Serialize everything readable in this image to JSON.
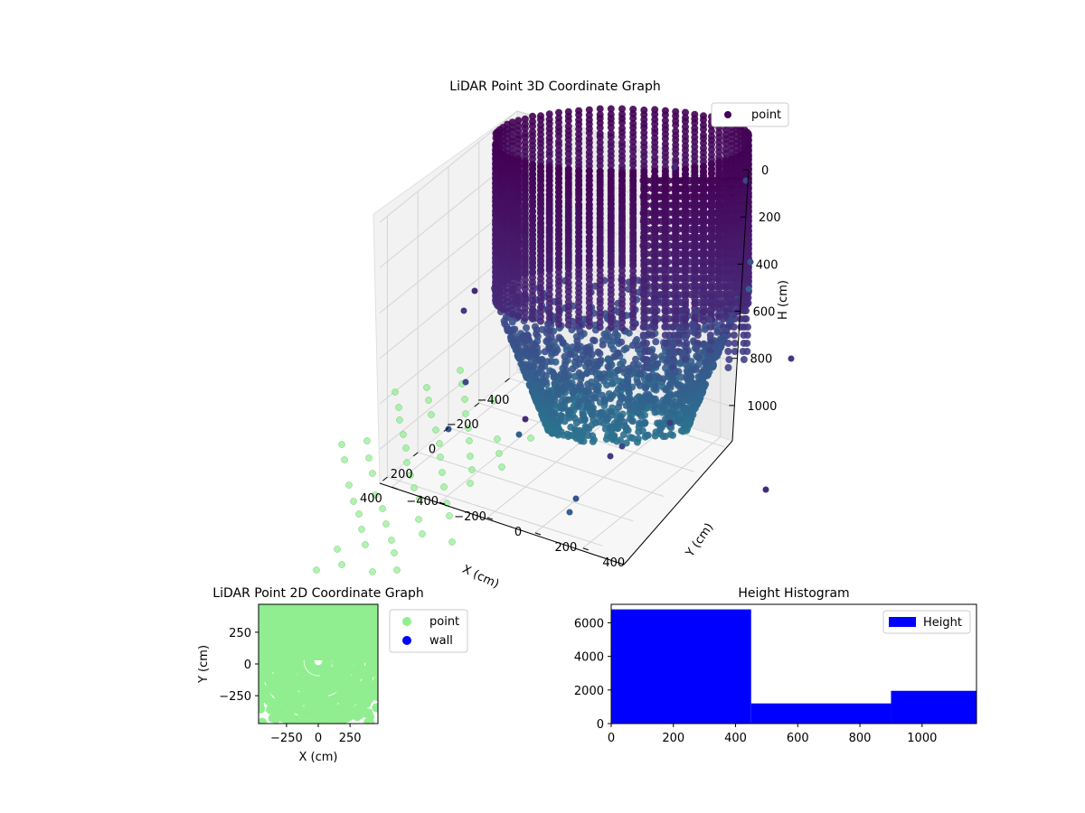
{
  "chart_data": [
    {
      "type": "scatter",
      "title": "LiDAR Point 3D Coordinate Graph",
      "xlabel": "X (cm)",
      "ylabel": "Y (cm)",
      "zlabel": "H (cm)",
      "xticks": [
        -400,
        -200,
        0,
        200,
        400
      ],
      "yticks": [
        -400,
        -200,
        0,
        200,
        400
      ],
      "zticks": [
        0,
        200,
        400,
        600,
        800,
        1000
      ],
      "zlim": [
        0,
        1150
      ],
      "zinverted": true,
      "series": [
        {
          "name": "point",
          "color": "#440154"
        }
      ],
      "colormap": "viridis",
      "projection_color": "#90ee90",
      "legend": "top-right",
      "grid": true
    },
    {
      "type": "scatter",
      "title": "LiDAR Point 2D Coordinate Graph",
      "xlabel": "X (cm)",
      "ylabel": "Y (cm)",
      "xticks": [
        -250,
        0,
        250
      ],
      "yticks": [
        -250,
        0,
        250
      ],
      "xlim": [
        -470,
        470
      ],
      "ylim": [
        -470,
        470
      ],
      "series": [
        {
          "name": "point",
          "color": "#90ee90"
        },
        {
          "name": "wall",
          "color": "#0000ff"
        }
      ],
      "legend": "outside-right"
    },
    {
      "type": "bar",
      "title": "Height Histogram",
      "xticks": [
        0,
        200,
        400,
        600,
        800,
        1000
      ],
      "yticks": [
        0,
        2000,
        4000,
        6000
      ],
      "xlim": [
        0,
        1175
      ],
      "ylim": [
        0,
        7100
      ],
      "bins": [
        {
          "from": 0,
          "to": 450,
          "value": 6800
        },
        {
          "from": 450,
          "to": 900,
          "value": 1200
        },
        {
          "from": 900,
          "to": 1175,
          "value": 1950
        }
      ],
      "series": [
        {
          "name": "Height",
          "color": "#0000ff"
        }
      ],
      "legend": "top-right"
    }
  ]
}
